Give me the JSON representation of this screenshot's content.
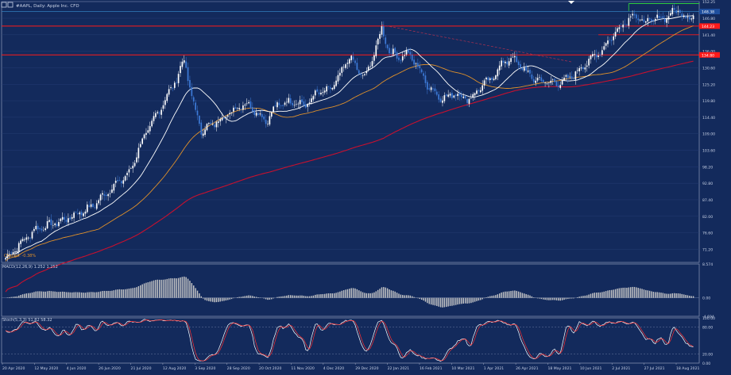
{
  "window": {
    "title": "#AAPL, Daily:  Apple Inc. CFD",
    "indicator_note": "Change: -0.38%"
  },
  "colors": {
    "background": "#132a5c",
    "panel_border": "#8f9bb8",
    "grid": "#2a4178",
    "text": "#c9d2e6",
    "bull_candle": "#ffffff",
    "bear_candle": "#3d7bd9",
    "ma_fast": "#ffffff",
    "ma_mid": "#e0912a",
    "ma_slow": "#c8102e",
    "resistance": "#ff1a1a",
    "high_zone": "#2ecc40",
    "stoch_k": "#ffffff",
    "stoch_d": "#ff3030",
    "macd_hist": "#c8c8c8",
    "price_tag": "#ff1a1a"
  },
  "chart_data": [
    {
      "type": "candlestick",
      "title": "#AAPL, Daily:  Apple Inc. CFD",
      "ylim": [
        66.9,
        152.25
      ],
      "yticks": [
        "152.25",
        "146.80",
        "141.40",
        "136.00",
        "130.60",
        "125.20",
        "119.80",
        "114.40",
        "109.00",
        "103.60",
        "98.20",
        "92.80",
        "87.40",
        "82.00",
        "76.60",
        "71.20"
      ],
      "price_tags": [
        {
          "value": "148.38",
          "role": "current"
        },
        {
          "value": "144.23",
          "role": "level"
        },
        {
          "value": "134.80",
          "role": "level"
        }
      ],
      "horizontal_levels": [
        144.23,
        134.8,
        141.4
      ],
      "high_zone": [
        149.2,
        151.6
      ],
      "trendline": {
        "from": [
          "22 Jan 2021",
          144.6
        ],
        "to": [
          "26 Apr 2021",
          132.5
        ]
      },
      "moving_averages": [
        "fast",
        "mid",
        "slow"
      ],
      "xticks": [
        "20 Apr 2020",
        "12 May 2020",
        "4 Jun 2020",
        "26 Jun 2020",
        "21 Jul 2020",
        "12 Aug 2020",
        "3 Sep 2020",
        "28 Sep 2020",
        "20 Oct 2020",
        "11 Nov 2020",
        "4 Dec 2020",
        "29 Dec 2020",
        "22 Jan 2021",
        "16 Feb 2021",
        "10 Mar 2021",
        "1 Apr 2021",
        "26 Apr 2021",
        "18 May 2021",
        "10 Jun 2021",
        "2 Jul 2021",
        "27 Jul 2021",
        "18 Aug 2021"
      ],
      "close_anchors": [
        {
          "d": 0,
          "c": 68.3
        },
        {
          "d": 15,
          "c": 77.5
        },
        {
          "d": 30,
          "c": 80.6
        },
        {
          "d": 45,
          "c": 85.0
        },
        {
          "d": 58,
          "c": 92.5
        },
        {
          "d": 65,
          "c": 96.0
        },
        {
          "d": 72,
          "c": 107.0
        },
        {
          "d": 82,
          "c": 118.0
        },
        {
          "d": 90,
          "c": 127.0
        },
        {
          "d": 94,
          "c": 133.5
        },
        {
          "d": 98,
          "c": 121.0
        },
        {
          "d": 103,
          "c": 110.0
        },
        {
          "d": 110,
          "c": 112.5
        },
        {
          "d": 118,
          "c": 115.8
        },
        {
          "d": 125,
          "c": 119.0
        },
        {
          "d": 130,
          "c": 117.5
        },
        {
          "d": 137,
          "c": 113.0
        },
        {
          "d": 143,
          "c": 118.5
        },
        {
          "d": 152,
          "c": 119.8
        },
        {
          "d": 158,
          "c": 118.2
        },
        {
          "d": 164,
          "c": 122.5
        },
        {
          "d": 170,
          "c": 123.0
        },
        {
          "d": 176,
          "c": 128.0
        },
        {
          "d": 181,
          "c": 134.5
        },
        {
          "d": 186,
          "c": 129.0
        },
        {
          "d": 190,
          "c": 128.0
        },
        {
          "d": 195,
          "c": 137.5
        },
        {
          "d": 198,
          "c": 143.2
        },
        {
          "d": 202,
          "c": 136.0
        },
        {
          "d": 207,
          "c": 134.0
        },
        {
          "d": 212,
          "c": 135.2
        },
        {
          "d": 217,
          "c": 131.0
        },
        {
          "d": 222,
          "c": 125.0
        },
        {
          "d": 228,
          "c": 121.2
        },
        {
          "d": 232,
          "c": 120.6
        },
        {
          "d": 236,
          "c": 122.5
        },
        {
          "d": 240,
          "c": 121.0
        },
        {
          "d": 245,
          "c": 120.5
        },
        {
          "d": 250,
          "c": 124.5
        },
        {
          "d": 256,
          "c": 127.0
        },
        {
          "d": 261,
          "c": 132.0
        },
        {
          "d": 267,
          "c": 133.8
        },
        {
          "d": 272,
          "c": 130.5
        },
        {
          "d": 278,
          "c": 127.0
        },
        {
          "d": 284,
          "c": 126.0
        },
        {
          "d": 290,
          "c": 125.5
        },
        {
          "d": 296,
          "c": 126.8
        },
        {
          "d": 302,
          "c": 130.0
        },
        {
          "d": 308,
          "c": 133.5
        },
        {
          "d": 314,
          "c": 136.5
        },
        {
          "d": 320,
          "c": 141.5
        },
        {
          "d": 325,
          "c": 145.0
        },
        {
          "d": 330,
          "c": 148.0
        },
        {
          "d": 336,
          "c": 145.5
        },
        {
          "d": 342,
          "c": 146.5
        },
        {
          "d": 348,
          "c": 147.3
        },
        {
          "d": 354,
          "c": 149.8
        },
        {
          "d": 358,
          "c": 146.6
        },
        {
          "d": 362,
          "c": 148.4
        }
      ]
    },
    {
      "type": "bar",
      "title": "MACD(12,26,9) 1.252 1.252",
      "ylim": [
        -4.69,
        8.57
      ],
      "yticks": [
        "8.574",
        "0.00",
        "-4.694"
      ]
    },
    {
      "type": "line",
      "title": "Stoch(5,3,3) 51.82 58.32",
      "ylim": [
        0,
        100
      ],
      "yticks": [
        "100.00",
        "80.00",
        "20.00",
        "0.00"
      ],
      "levels": [
        80,
        20
      ]
    }
  ]
}
